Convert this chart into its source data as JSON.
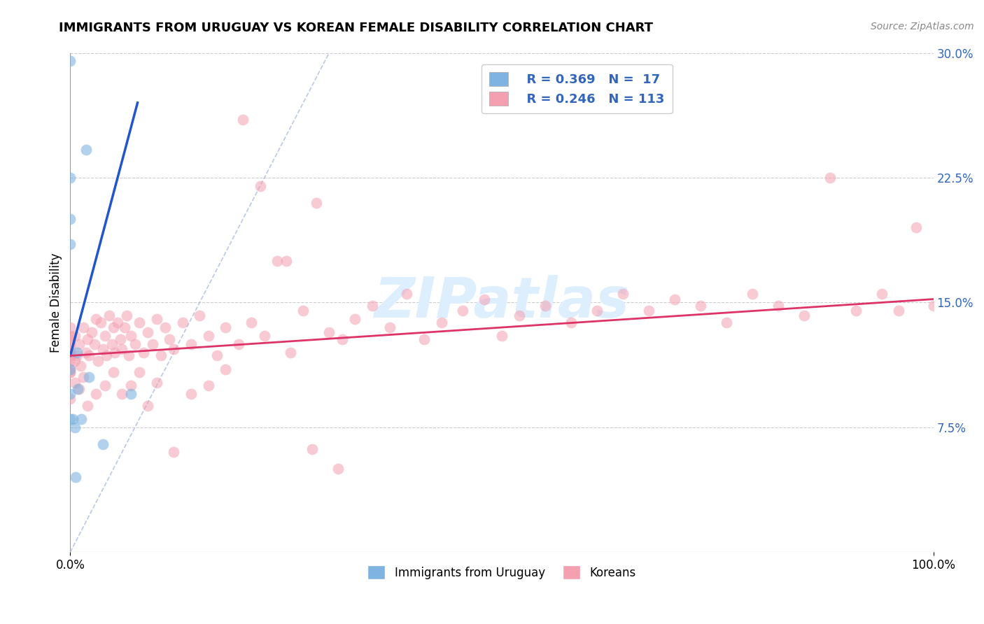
{
  "title": "IMMIGRANTS FROM URUGUAY VS KOREAN FEMALE DISABILITY CORRELATION CHART",
  "source": "Source: ZipAtlas.com",
  "ylabel": "Female Disability",
  "xlim": [
    0,
    1.0
  ],
  "ylim": [
    0,
    0.3
  ],
  "grid_color": "#cccccc",
  "background_color": "#ffffff",
  "legend_R1": "R = 0.369",
  "legend_N1": "N =  17",
  "legend_R2": "R = 0.246",
  "legend_N2": "N = 113",
  "blue_color": "#7fb3e0",
  "pink_color": "#f4a0b0",
  "blue_line_color": "#2255cc",
  "pink_line_color": "#dd3366",
  "diag_color": "#aabbdd",
  "watermark_text": "ZIPatlas",
  "watermark_color": "#ddeeff",
  "uru_x": [
    0.0,
    0.0,
    0.0,
    0.0,
    0.0,
    0.0,
    0.0,
    0.003,
    0.005,
    0.006,
    0.008,
    0.009,
    0.013,
    0.018,
    0.022,
    0.038,
    0.07
  ],
  "uru_y": [
    0.295,
    0.225,
    0.2,
    0.185,
    0.11,
    0.095,
    0.08,
    0.08,
    0.075,
    0.045,
    0.12,
    0.098,
    0.08,
    0.242,
    0.105,
    0.065,
    0.095
  ],
  "kor_x": [
    0.0,
    0.0,
    0.0,
    0.0,
    0.0,
    0.0,
    0.0,
    0.0,
    0.0,
    0.0,
    0.005,
    0.005,
    0.008,
    0.01,
    0.012,
    0.015,
    0.018,
    0.02,
    0.022,
    0.025,
    0.028,
    0.03,
    0.032,
    0.035,
    0.038,
    0.04,
    0.042,
    0.045,
    0.048,
    0.05,
    0.052,
    0.055,
    0.058,
    0.06,
    0.063,
    0.065,
    0.068,
    0.07,
    0.075,
    0.08,
    0.085,
    0.09,
    0.095,
    0.1,
    0.105,
    0.11,
    0.115,
    0.12,
    0.13,
    0.14,
    0.15,
    0.16,
    0.17,
    0.18,
    0.195,
    0.21,
    0.225,
    0.24,
    0.255,
    0.27,
    0.285,
    0.3,
    0.315,
    0.33,
    0.35,
    0.37,
    0.39,
    0.41,
    0.43,
    0.455,
    0.48,
    0.5,
    0.52,
    0.55,
    0.58,
    0.61,
    0.64,
    0.67,
    0.7,
    0.73,
    0.76,
    0.79,
    0.82,
    0.85,
    0.88,
    0.91,
    0.94,
    0.96,
    0.98,
    1.0,
    0.0,
    0.0,
    0.005,
    0.01,
    0.015,
    0.02,
    0.03,
    0.04,
    0.05,
    0.06,
    0.07,
    0.08,
    0.09,
    0.1,
    0.12,
    0.14,
    0.16,
    0.18,
    0.2,
    0.22,
    0.25,
    0.28,
    0.31
  ],
  "kor_y": [
    0.125,
    0.12,
    0.115,
    0.13,
    0.11,
    0.135,
    0.108,
    0.118,
    0.122,
    0.128,
    0.13,
    0.115,
    0.118,
    0.125,
    0.112,
    0.135,
    0.12,
    0.128,
    0.118,
    0.132,
    0.125,
    0.14,
    0.115,
    0.138,
    0.122,
    0.13,
    0.118,
    0.142,
    0.125,
    0.135,
    0.12,
    0.138,
    0.128,
    0.122,
    0.135,
    0.142,
    0.118,
    0.13,
    0.125,
    0.138,
    0.12,
    0.132,
    0.125,
    0.14,
    0.118,
    0.135,
    0.128,
    0.122,
    0.138,
    0.125,
    0.142,
    0.13,
    0.118,
    0.135,
    0.125,
    0.138,
    0.13,
    0.175,
    0.12,
    0.145,
    0.21,
    0.132,
    0.128,
    0.14,
    0.148,
    0.135,
    0.155,
    0.128,
    0.138,
    0.145,
    0.152,
    0.13,
    0.142,
    0.148,
    0.138,
    0.145,
    0.155,
    0.145,
    0.152,
    0.148,
    0.138,
    0.155,
    0.148,
    0.142,
    0.225,
    0.145,
    0.155,
    0.145,
    0.195,
    0.148,
    0.108,
    0.092,
    0.102,
    0.098,
    0.105,
    0.088,
    0.095,
    0.1,
    0.108,
    0.095,
    0.1,
    0.108,
    0.088,
    0.102,
    0.06,
    0.095,
    0.1,
    0.11,
    0.26,
    0.22,
    0.175,
    0.062,
    0.05
  ],
  "uru_line_x": [
    0.0,
    0.078
  ],
  "uru_line_y": [
    0.118,
    0.27
  ],
  "kor_line_x": [
    0.0,
    1.0
  ],
  "kor_line_y": [
    0.118,
    0.152
  ],
  "diag_line_x": [
    0.0,
    0.3
  ],
  "diag_line_y": [
    0.0,
    0.3
  ]
}
